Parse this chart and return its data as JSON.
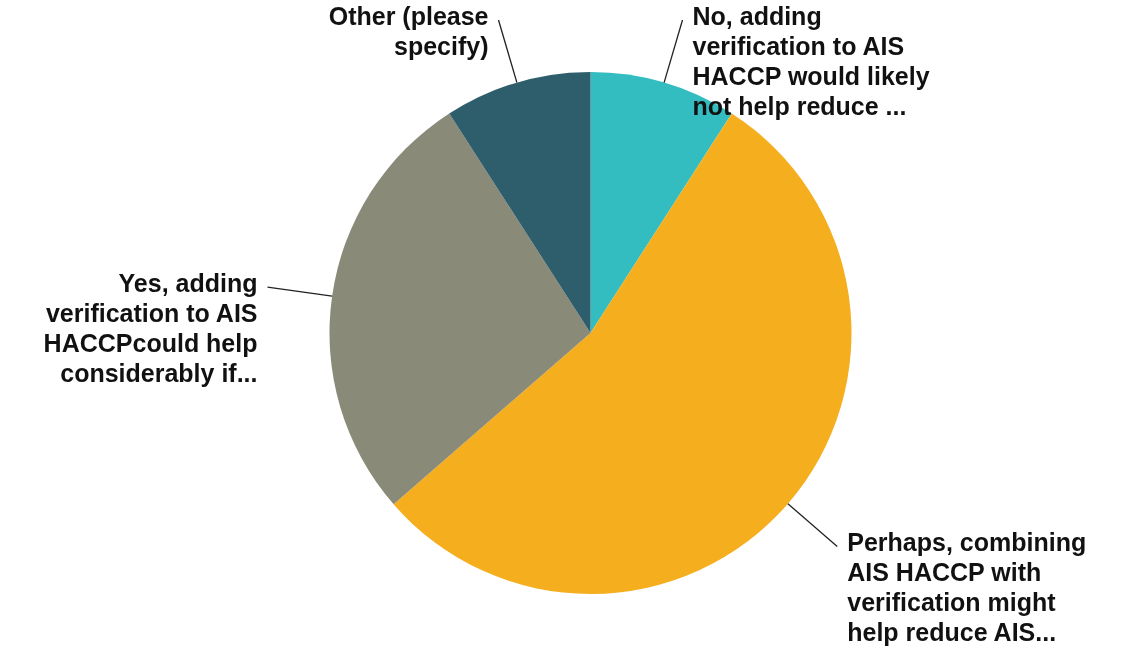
{
  "chart_data": {
    "type": "pie",
    "categories": [
      "No, adding verification to AIS HACCP would likely not help reduce ...",
      "Perhaps, combining AIS HACCP with verification might help reduce AIS...",
      "Yes, adding verification to AIS HACCPcould help considerably if...",
      "Other (please specify)"
    ],
    "values": [
      9.1,
      54.5,
      27.3,
      9.1
    ],
    "colors": [
      "#33bdc0",
      "#f5ae1e",
      "#898a78",
      "#2e5e6c"
    ]
  }
}
